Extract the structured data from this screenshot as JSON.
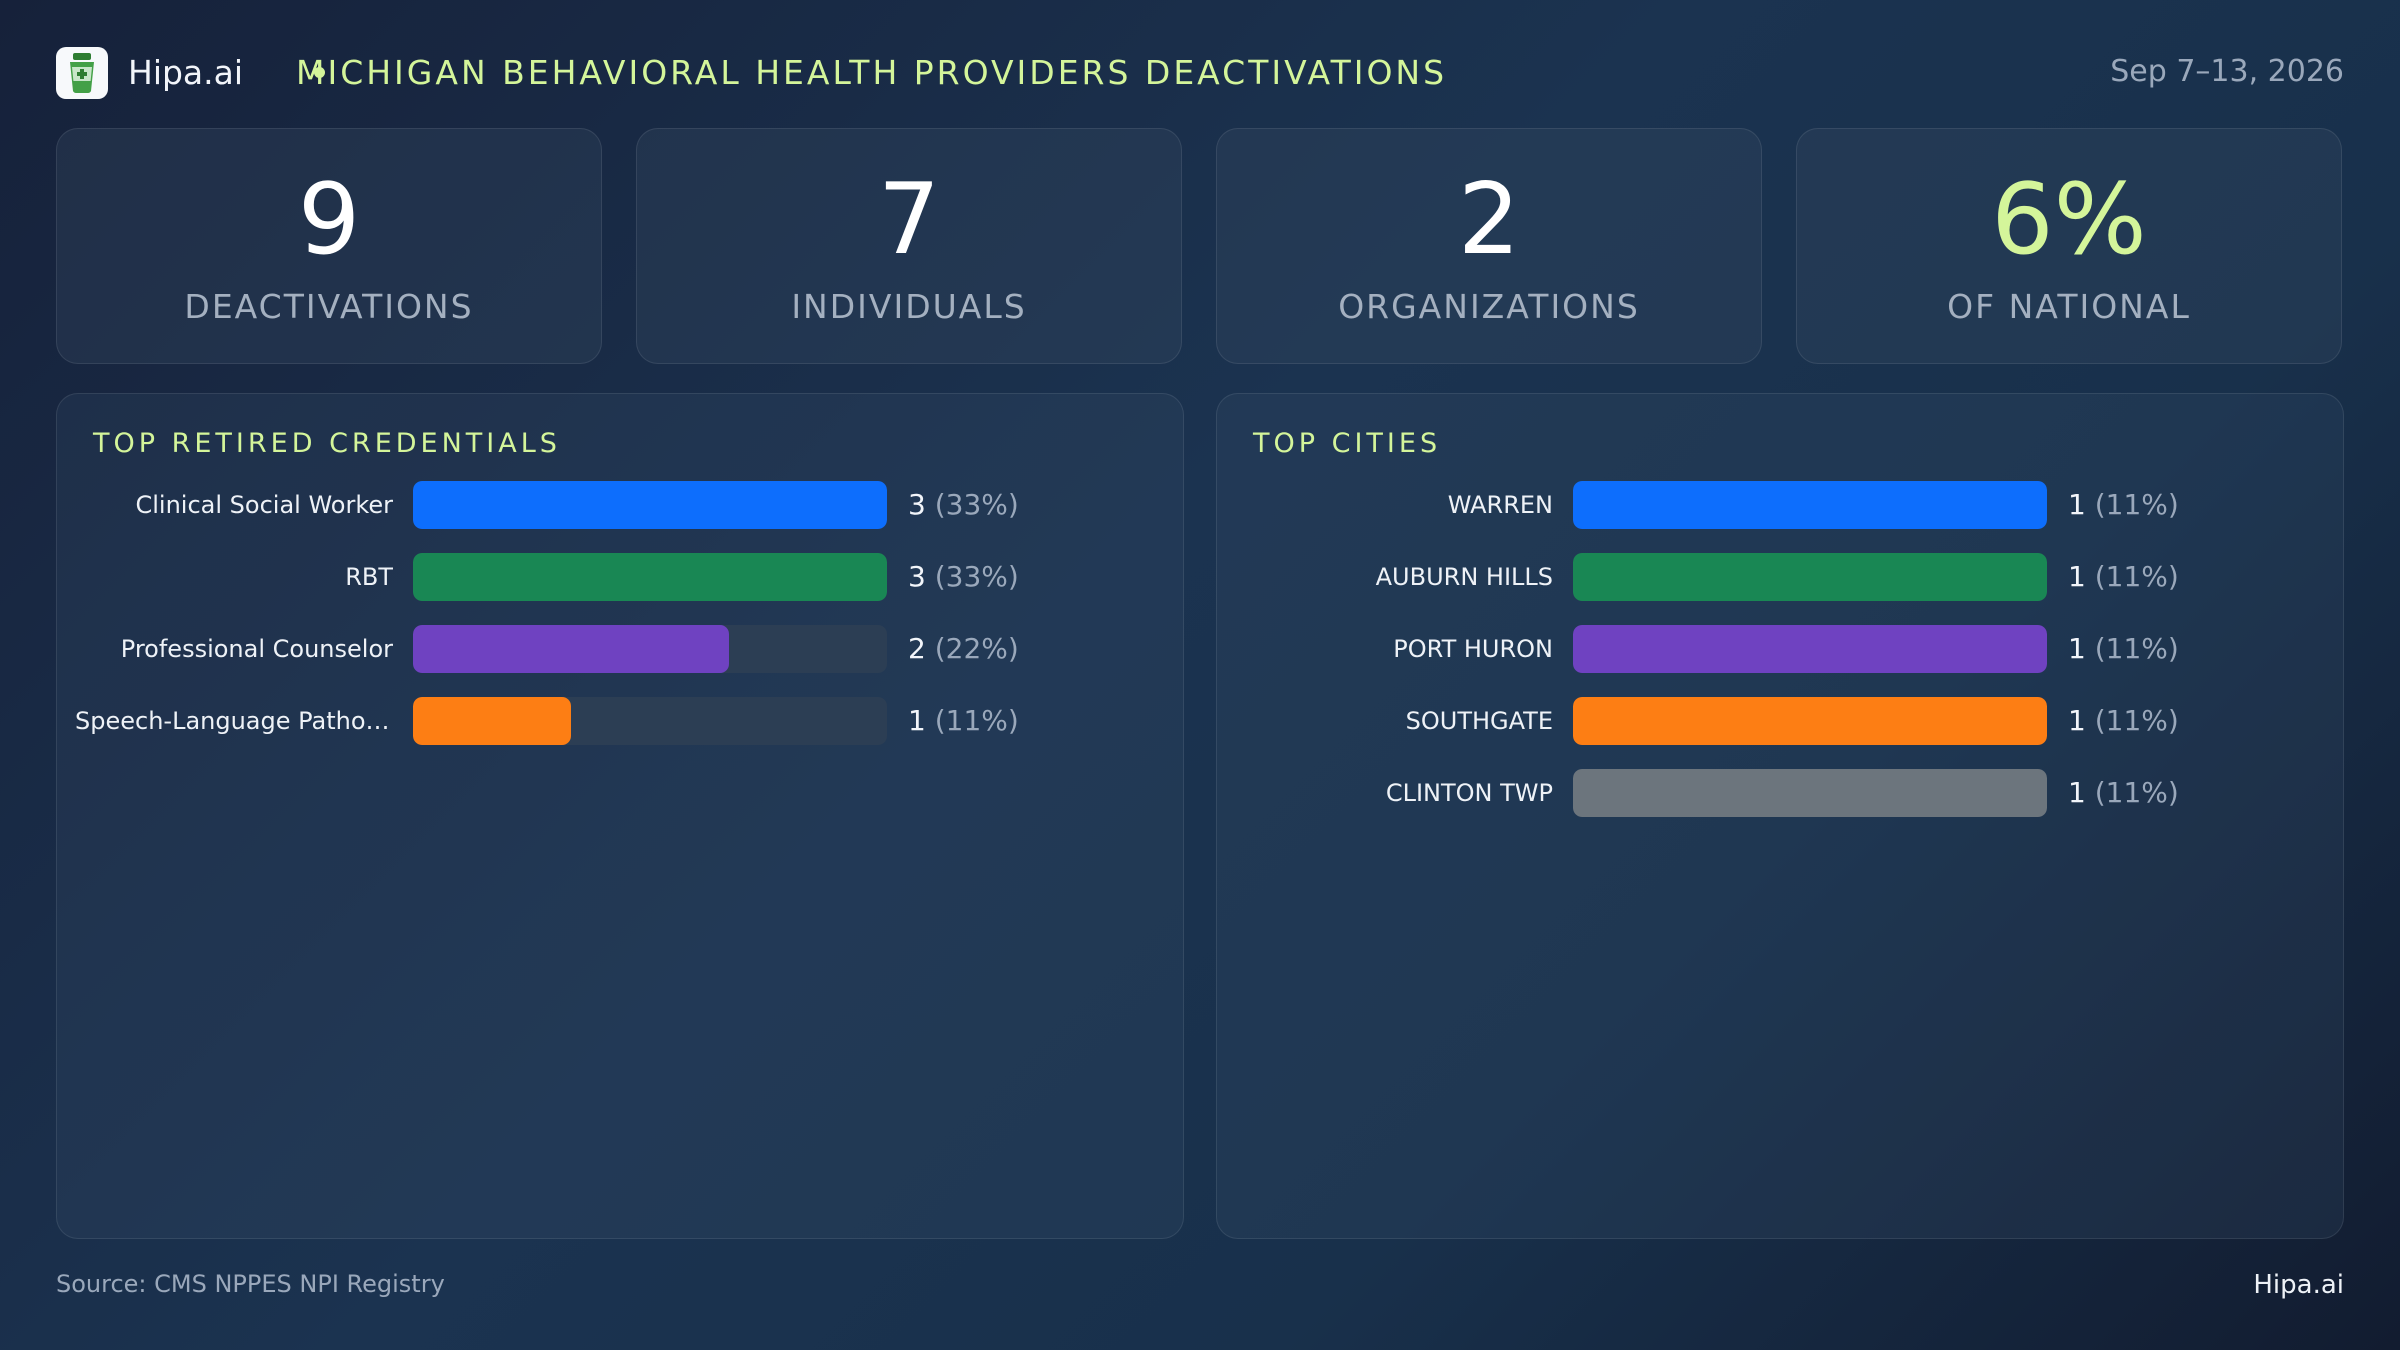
{
  "header": {
    "brand": "Hipa.ai",
    "title": "MICHIGAN BEHAVIORAL HEALTH PROVIDERS DEACTIVATIONS",
    "date": "Sep 7–13, 2026",
    "accent_color": "#d4f59a",
    "logo_icon": "medicine-cup-icon"
  },
  "kpis": [
    {
      "value": "9",
      "label": "DEACTIVATIONS",
      "color": "#ffffff"
    },
    {
      "value": "7",
      "label": "INDIVIDUALS",
      "color": "#ffffff"
    },
    {
      "value": "2",
      "label": "ORGANIZATIONS",
      "color": "#ffffff"
    },
    {
      "value": "6%",
      "label": "OF NATIONAL",
      "color": "#d4f59a"
    }
  ],
  "chart_data": [
    {
      "type": "bar",
      "orientation": "horizontal",
      "title": "TOP RETIRED CREDENTIALS",
      "categories": [
        "Clinical Social Worker",
        "RBT",
        "Professional Counselor",
        "Speech-Language Pathol..."
      ],
      "values": [
        3,
        3,
        2,
        1
      ],
      "percent_labels": [
        "(33%)",
        "(33%)",
        "(22%)",
        "(11%)"
      ],
      "colors": [
        "#0d6efd",
        "#198754",
        "#6f42c1",
        "#fd7e14"
      ],
      "xlim": [
        0,
        3
      ]
    },
    {
      "type": "bar",
      "orientation": "horizontal",
      "title": "TOP CITIES",
      "categories": [
        "WARREN",
        "AUBURN HILLS",
        "PORT HURON",
        "SOUTHGATE",
        "CLINTON TWP"
      ],
      "values": [
        1,
        1,
        1,
        1,
        1
      ],
      "percent_labels": [
        "(11%)",
        "(11%)",
        "(11%)",
        "(11%)",
        "(11%)"
      ],
      "colors": [
        "#0d6efd",
        "#198754",
        "#6f42c1",
        "#fd7e14",
        "#6c757d"
      ],
      "xlim": [
        0,
        1
      ]
    }
  ],
  "footer": {
    "source": "Source: CMS NPPES NPI Registry",
    "brand": "Hipa.ai"
  }
}
